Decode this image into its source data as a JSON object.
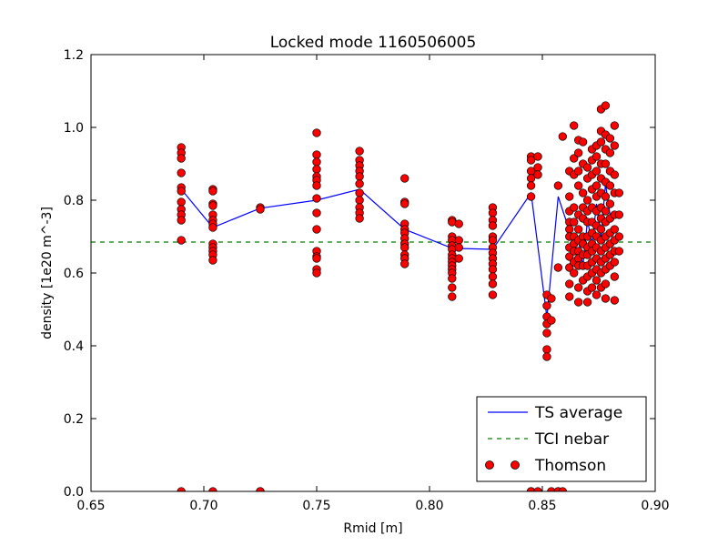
{
  "chart_data": {
    "type": "scatter",
    "title": "Locked mode 1160506005",
    "xlabel": "Rmid [m]",
    "ylabel": "density [1e20 m^-3]",
    "xlim": [
      0.65,
      0.9
    ],
    "ylim": [
      0.0,
      1.2
    ],
    "xticks": [
      "0.65",
      "0.70",
      "0.75",
      "0.80",
      "0.85",
      "0.90"
    ],
    "yticks": [
      "0.0",
      "0.2",
      "0.4",
      "0.6",
      "0.8",
      "1.0",
      "1.2"
    ],
    "grid": false,
    "legend_position": "lower-right",
    "colors": {
      "ts_average": "#0000ff",
      "tci_nebar": "#008000",
      "thomson_fill": "#ff0000",
      "thomson_edge": "#000000"
    },
    "series": [
      {
        "name": "TS average",
        "kind": "line",
        "x": [
          0.69,
          0.704,
          0.725,
          0.75,
          0.769,
          0.789,
          0.81,
          0.828,
          0.845,
          0.852,
          0.857,
          0.861,
          0.864,
          0.866,
          0.868,
          0.87,
          0.872,
          0.874,
          0.876,
          0.878,
          0.88
        ],
        "y": [
          0.83,
          0.725,
          0.778,
          0.8,
          0.83,
          0.72,
          0.668,
          0.665,
          0.82,
          0.478,
          0.81,
          0.735,
          0.675,
          0.69,
          0.62,
          0.745,
          0.68,
          0.79,
          0.7,
          0.845,
          0.76
        ]
      },
      {
        "name": "TCI nebar",
        "kind": "hline",
        "y": 0.685
      },
      {
        "name": "Thomson",
        "kind": "scatter",
        "clusters": [
          {
            "x": 0.69,
            "y": [
              0.945,
              0.93,
              0.915,
              0.875,
              0.835,
              0.825,
              0.795,
              0.775,
              0.76,
              0.745,
              0.69,
              0.0
            ]
          },
          {
            "x": 0.704,
            "y": [
              0.83,
              0.825,
              0.79,
              0.785,
              0.76,
              0.745,
              0.735,
              0.725,
              0.68,
              0.67,
              0.66,
              0.65,
              0.635,
              0.0
            ]
          },
          {
            "x": 0.725,
            "y": [
              0.78,
              0.775,
              0.0,
              0.0
            ]
          },
          {
            "x": 0.75,
            "y": [
              0.985,
              0.925,
              0.905,
              0.885,
              0.865,
              0.855,
              0.84,
              0.805,
              0.765,
              0.72,
              0.66,
              0.645,
              0.64,
              0.61,
              0.6
            ]
          },
          {
            "x": 0.769,
            "y": [
              0.935,
              0.91,
              0.895,
              0.88,
              0.865,
              0.845,
              0.82,
              0.8,
              0.78,
              0.765,
              0.75
            ]
          },
          {
            "x": 0.789,
            "y": [
              0.86,
              0.795,
              0.79,
              0.735,
              0.72,
              0.71,
              0.695,
              0.68,
              0.67,
              0.65,
              0.64,
              0.625
            ]
          },
          {
            "x": 0.81,
            "y": [
              0.745,
              0.74,
              0.7,
              0.69,
              0.675,
              0.665,
              0.65,
              0.64,
              0.63,
              0.62,
              0.61,
              0.6,
              0.585,
              0.56,
              0.535
            ]
          },
          {
            "x": 0.813,
            "y": [
              0.735,
              0.69,
              0.67,
              0.64
            ]
          },
          {
            "x": 0.828,
            "y": [
              0.78,
              0.765,
              0.745,
              0.73,
              0.7,
              0.69,
              0.67,
              0.655,
              0.64,
              0.625,
              0.61,
              0.59,
              0.57,
              0.54
            ]
          },
          {
            "x": 0.845,
            "y": [
              0.92,
              0.91,
              0.88,
              0.86,
              0.84,
              0.81,
              0.0,
              0.0
            ]
          },
          {
            "x": 0.848,
            "y": [
              0.92,
              0.89,
              0.87,
              0.0
            ]
          },
          {
            "x": 0.852,
            "y": [
              0.54,
              0.51,
              0.48,
              0.46,
              0.435,
              0.39,
              0.37
            ]
          },
          {
            "x": 0.854,
            "y": [
              0.53,
              0.47,
              0.0
            ]
          },
          {
            "x": 0.857,
            "y": [
              0.84,
              0.615,
              0.0,
              0.0
            ]
          },
          {
            "x": 0.859,
            "y": [
              0.975,
              0.0
            ]
          },
          {
            "x": 0.862,
            "y": [
              0.81,
              0.77,
              0.74,
              0.72,
              0.7,
              0.67,
              0.645,
              0.615,
              0.57,
              0.535,
              0.88
            ]
          },
          {
            "x": 0.864,
            "y": [
              1.005,
              0.915,
              0.87,
              0.78,
              0.74,
              0.7,
              0.68,
              0.66,
              0.63,
              0.6
            ]
          },
          {
            "x": 0.866,
            "y": [
              0.965,
              0.93,
              0.88,
              0.84,
              0.76,
              0.72,
              0.69,
              0.66,
              0.64,
              0.62,
              0.56,
              0.52
            ]
          },
          {
            "x": 0.868,
            "y": [
              0.96,
              0.9,
              0.82,
              0.78,
              0.75,
              0.7,
              0.68,
              0.65,
              0.62,
              0.58
            ]
          },
          {
            "x": 0.87,
            "y": [
              0.89,
              0.86,
              0.8,
              0.77,
              0.74,
              0.7,
              0.67,
              0.65,
              0.62,
              0.59,
              0.55,
              0.52
            ]
          },
          {
            "x": 0.872,
            "y": [
              0.94,
              0.91,
              0.87,
              0.83,
              0.78,
              0.74,
              0.71,
              0.68,
              0.66,
              0.63,
              0.6,
              0.56
            ]
          },
          {
            "x": 0.874,
            "y": [
              0.95,
              0.92,
              0.88,
              0.84,
              0.81,
              0.77,
              0.73,
              0.7,
              0.67,
              0.64,
              0.61,
              0.58,
              0.54
            ]
          },
          {
            "x": 0.876,
            "y": [
              1.05,
              0.99,
              0.96,
              0.9,
              0.86,
              0.82,
              0.78,
              0.75,
              0.72,
              0.69,
              0.66,
              0.63,
              0.6,
              0.56
            ]
          },
          {
            "x": 0.878,
            "y": [
              1.06,
              0.98,
              0.94,
              0.9,
              0.85,
              0.81,
              0.77,
              0.74,
              0.7,
              0.67,
              0.64,
              0.61,
              0.57,
              0.53
            ]
          },
          {
            "x": 0.88,
            "y": [
              0.97,
              0.93,
              0.88,
              0.84,
              0.79,
              0.75,
              0.71,
              0.68,
              0.65,
              0.62
            ]
          },
          {
            "x": 0.882,
            "y": [
              1.005,
              0.95,
              0.87,
              0.82,
              0.76,
              0.72,
              0.69,
              0.66,
              0.63,
              0.59,
              0.525
            ]
          },
          {
            "x": 0.884,
            "y": [
              0.82,
              0.76,
              0.7,
              0.66
            ]
          }
        ]
      }
    ]
  }
}
